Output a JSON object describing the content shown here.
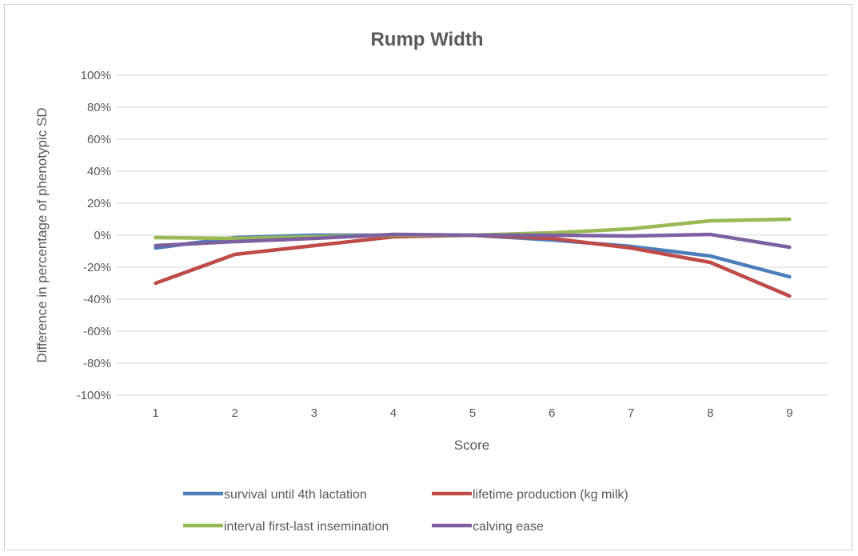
{
  "chart_data": {
    "type": "line",
    "title": "Rump Width",
    "xlabel": "Score",
    "ylabel": "Difference in percentage of phenotypic SD",
    "x": [
      1,
      2,
      3,
      4,
      5,
      6,
      7,
      8,
      9
    ],
    "ylim": [
      -100,
      100
    ],
    "yticks": [
      100,
      80,
      60,
      40,
      20,
      0,
      -20,
      -40,
      -60,
      -80,
      -100
    ],
    "ytick_labels": [
      "100%",
      "80%",
      "60%",
      "40%",
      "20%",
      "0%",
      "-20%",
      "-40%",
      "-60%",
      "-80%",
      "-100%"
    ],
    "grid": true,
    "legend_position": "bottom",
    "series": [
      {
        "name": "survival until 4th lactation",
        "color": "#4a7ebb",
        "values": [
          -8,
          -1.5,
          0,
          0,
          0,
          -3,
          -7,
          -13,
          -26
        ]
      },
      {
        "name": "lifetime production (kg milk)",
        "color": "#be4b48",
        "values": [
          -30,
          -12,
          -6.5,
          -1,
          0,
          -2,
          -8,
          -17,
          -38
        ]
      },
      {
        "name": "interval first-last insemination",
        "color": "#98b954",
        "values": [
          -1.5,
          -2,
          -1,
          0,
          0,
          1.5,
          4,
          9,
          10
        ]
      },
      {
        "name": "calving ease",
        "color": "#7d60a0",
        "values": [
          -6.5,
          -4,
          -2,
          0.5,
          0,
          0,
          -0.5,
          0.5,
          -7.5
        ]
      }
    ]
  }
}
